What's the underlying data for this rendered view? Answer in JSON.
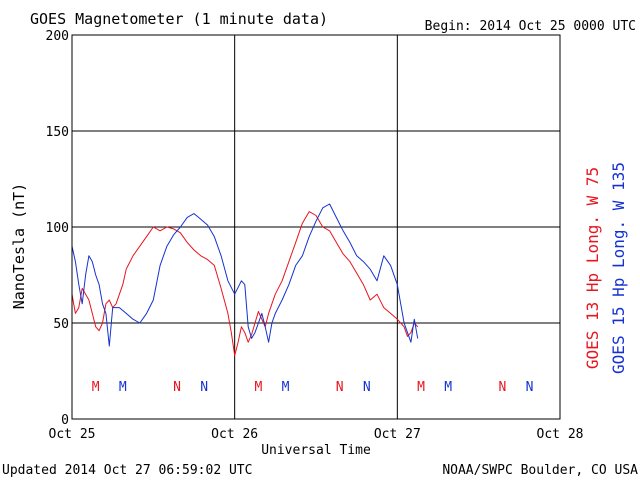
{
  "header": {
    "title": "GOES Magnetometer (1 minute data)",
    "begin": "Begin:  2014 Oct 25 0000 UTC"
  },
  "footer": {
    "updated": "Updated 2014 Oct 27 06:59:02 UTC",
    "source": "NOAA/SWPC Boulder, CO USA"
  },
  "colors": {
    "goes13": "#e8141e",
    "goes15": "#1432d2",
    "grid": "#000000"
  },
  "chart_data": {
    "type": "line",
    "title": "GOES Magnetometer (1 minute data)",
    "xlabel": "Universal Time",
    "ylabel": "NanoTesla (nT)",
    "ylim": [
      0,
      200
    ],
    "yticks": [
      0,
      50,
      100,
      150,
      200
    ],
    "xlim": [
      0,
      72
    ],
    "xunit": "hours since 2014 Oct 25 0000 UTC",
    "xticks": [
      {
        "hour": 0,
        "label": "Oct 25"
      },
      {
        "hour": 24,
        "label": "Oct 26"
      },
      {
        "hour": 48,
        "label": "Oct 27"
      },
      {
        "hour": 72,
        "label": "Oct 28"
      }
    ],
    "grid": true,
    "series": [
      {
        "name": "GOES 13 Hp  Long. W 75",
        "color": "#e8141e",
        "x": [
          0,
          0.5,
          1.0,
          1.5,
          2.0,
          2.5,
          3.0,
          3.5,
          4.0,
          4.5,
          5.0,
          5.5,
          6.0,
          6.5,
          7.0,
          7.5,
          8.0,
          9.0,
          10.0,
          11.0,
          12.0,
          13.0,
          14.0,
          15.0,
          16.0,
          17.0,
          18.0,
          19.0,
          20.0,
          21.0,
          22.0,
          23.0,
          23.5,
          24.0,
          24.5,
          25.0,
          25.5,
          26.0,
          26.5,
          27.0,
          27.5,
          28.0,
          28.5,
          29.0,
          29.5,
          30.0,
          31.0,
          32.0,
          33.0,
          34.0,
          35.0,
          36.0,
          37.0,
          38.0,
          39.0,
          40.0,
          41.0,
          42.0,
          43.0,
          44.0,
          45.0,
          46.0,
          47.0,
          48.0,
          48.5,
          49.0,
          49.5,
          50.0,
          50.5,
          51.0
        ],
        "values": [
          65,
          55,
          58,
          68,
          65,
          62,
          55,
          48,
          46,
          50,
          60,
          62,
          58,
          60,
          65,
          70,
          78,
          85,
          90,
          95,
          100,
          98,
          100,
          99,
          97,
          92,
          88,
          85,
          83,
          80,
          68,
          55,
          45,
          33,
          40,
          48,
          45,
          40,
          44,
          50,
          56,
          52,
          48,
          55,
          60,
          65,
          72,
          82,
          92,
          102,
          108,
          106,
          100,
          98,
          92,
          86,
          82,
          76,
          70,
          62,
          65,
          58,
          55,
          52,
          50,
          48,
          43,
          45,
          50,
          48
        ]
      },
      {
        "name": "GOES 15 Hp  Long. W 135",
        "color": "#1432d2",
        "x": [
          0,
          0.5,
          1.0,
          1.5,
          2.0,
          2.5,
          3.0,
          3.5,
          4.0,
          4.5,
          5.0,
          5.5,
          6.0,
          7.0,
          8.0,
          9.0,
          10.0,
          11.0,
          12.0,
          13.0,
          14.0,
          15.0,
          16.0,
          17.0,
          18.0,
          19.0,
          20.0,
          21.0,
          22.0,
          23.0,
          24.0,
          25.0,
          25.5,
          26.0,
          26.5,
          27.0,
          27.5,
          28.0,
          28.5,
          29.0,
          29.5,
          30.0,
          31.0,
          32.0,
          33.0,
          34.0,
          35.0,
          36.0,
          37.0,
          38.0,
          39.0,
          40.0,
          41.0,
          42.0,
          43.0,
          44.0,
          45.0,
          46.0,
          47.0,
          48.0,
          48.5,
          49.0,
          49.5,
          50.0,
          50.5,
          51.0
        ],
        "values": [
          90,
          82,
          70,
          60,
          75,
          85,
          82,
          75,
          70,
          60,
          55,
          38,
          58,
          58,
          55,
          52,
          50,
          55,
          62,
          80,
          90,
          96,
          100,
          105,
          107,
          104,
          101,
          95,
          85,
          72,
          65,
          72,
          70,
          48,
          42,
          45,
          50,
          55,
          48,
          40,
          50,
          55,
          62,
          70,
          80,
          85,
          95,
          103,
          110,
          112,
          105,
          98,
          92,
          85,
          82,
          78,
          72,
          85,
          80,
          70,
          60,
          50,
          45,
          40,
          52,
          42
        ]
      }
    ],
    "markers": [
      {
        "hour": 3.5,
        "label": "M",
        "series": "GOES 13 Hp  Long. W 75"
      },
      {
        "hour": 7.5,
        "label": "M",
        "series": "GOES 15 Hp  Long. W 135"
      },
      {
        "hour": 15.5,
        "label": "N",
        "series": "GOES 13 Hp  Long. W 75"
      },
      {
        "hour": 19.5,
        "label": "N",
        "series": "GOES 15 Hp  Long. W 135"
      },
      {
        "hour": 27.5,
        "label": "M",
        "series": "GOES 13 Hp  Long. W 75"
      },
      {
        "hour": 31.5,
        "label": "M",
        "series": "GOES 15 Hp  Long. W 135"
      },
      {
        "hour": 39.5,
        "label": "N",
        "series": "GOES 13 Hp  Long. W 75"
      },
      {
        "hour": 43.5,
        "label": "N",
        "series": "GOES 15 Hp  Long. W 135"
      },
      {
        "hour": 51.5,
        "label": "M",
        "series": "GOES 13 Hp  Long. W 75"
      },
      {
        "hour": 55.5,
        "label": "M",
        "series": "GOES 15 Hp  Long. W 135"
      },
      {
        "hour": 63.5,
        "label": "N",
        "series": "GOES 13 Hp  Long. W 75"
      },
      {
        "hour": 67.5,
        "label": "N",
        "series": "GOES 15 Hp  Long. W 135"
      }
    ]
  }
}
